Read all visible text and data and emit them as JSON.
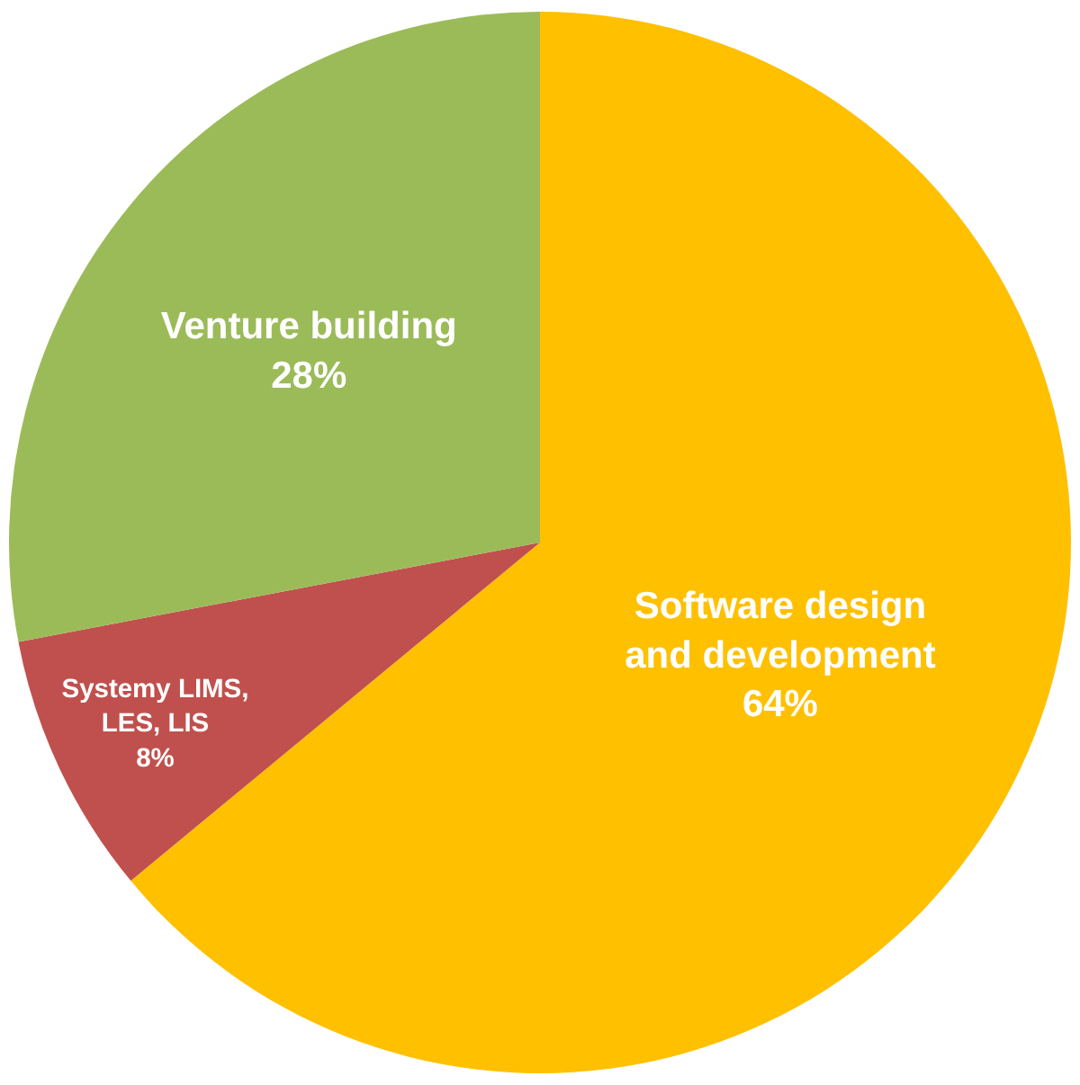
{
  "chart_data": {
    "type": "pie",
    "categories": [
      "Software design\nand development",
      "Systemy LIMS,\nLES, LIS",
      "Venture building"
    ],
    "values": [
      64,
      8,
      28
    ],
    "value_labels": [
      "64%",
      "8%",
      "28%"
    ],
    "colors": [
      "#ffc000",
      "#c0504d",
      "#9bbb59"
    ],
    "legend": false
  }
}
